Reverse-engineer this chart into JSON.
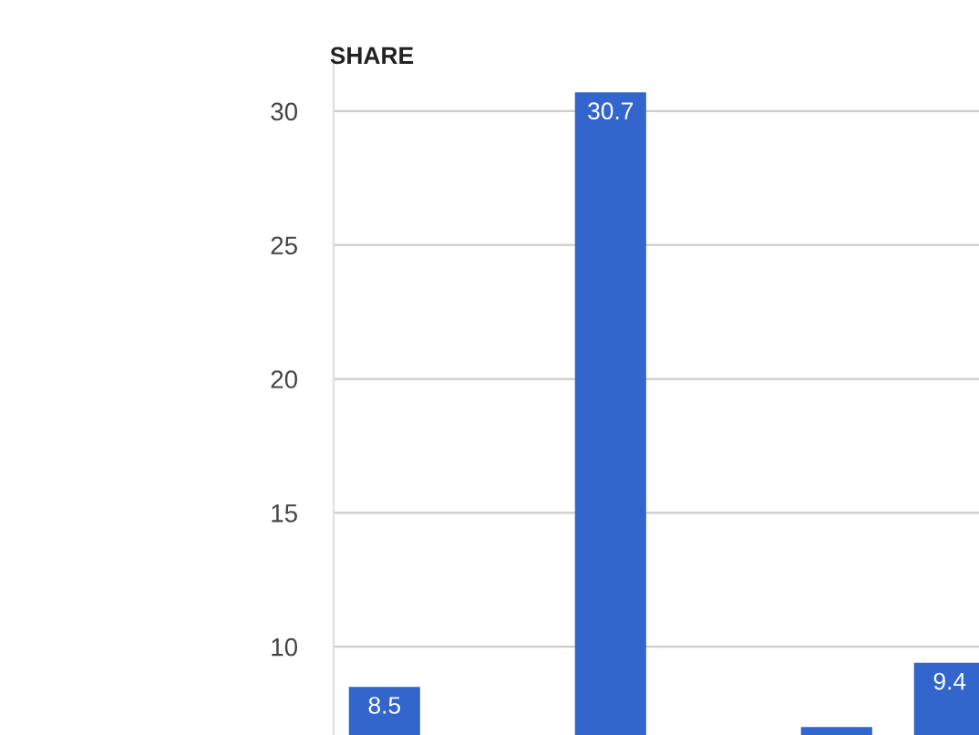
{
  "chart_data": {
    "type": "bar",
    "ylabel": "SHARE",
    "categories": [
      null,
      null,
      null,
      null,
      null,
      null
    ],
    "values": [
      8.5,
      null,
      30.7,
      null,
      7.0,
      9.4
    ],
    "value_labels": [
      "8.5",
      null,
      "30.7",
      null,
      null,
      "9.4"
    ],
    "color": "#3366cc",
    "ylim": [
      6.7,
      32
    ],
    "yticks": [
      10,
      15,
      20,
      25,
      30
    ],
    "grid": "y"
  }
}
